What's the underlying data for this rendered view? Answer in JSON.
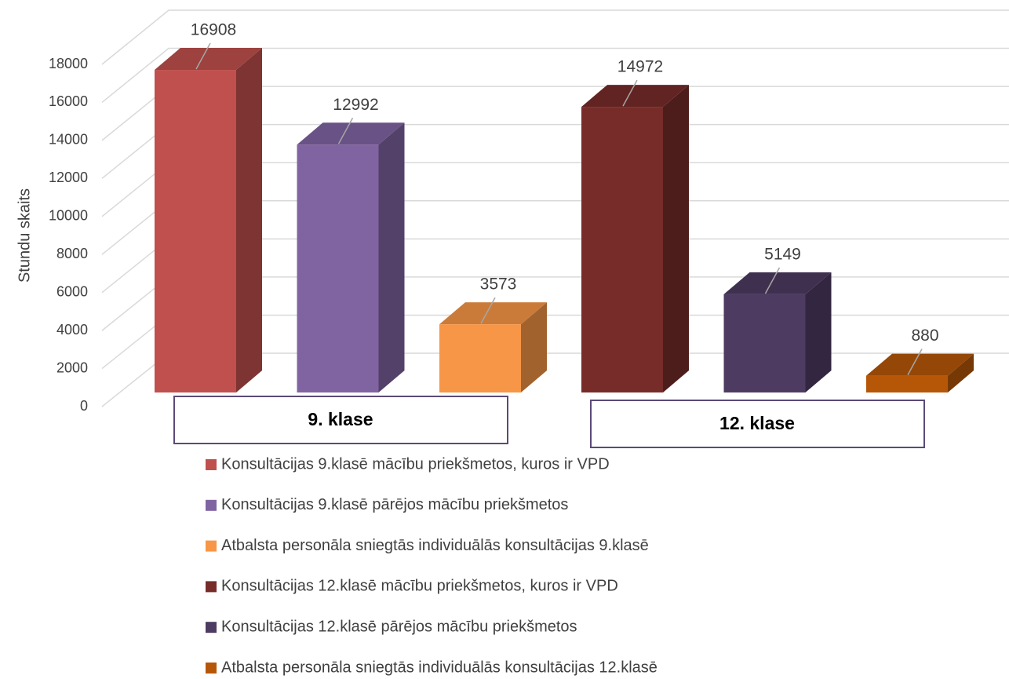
{
  "chart_data": {
    "type": "bar3d",
    "y_label": "Stundu skaits",
    "categories": [
      "9. klase",
      "12. klase"
    ],
    "ylim": [
      0,
      18000
    ],
    "yticks": [
      0,
      2000,
      4000,
      6000,
      8000,
      10000,
      12000,
      14000,
      16000,
      18000
    ],
    "grid": true,
    "series": [
      {
        "name": "Konsultācijas 9.klasē mācību priekšmetos, kuros ir VPD",
        "color": "#c0504d",
        "values": [
          16908,
          null
        ]
      },
      {
        "name": "Konsultācijas 9.klasē  pārējos mācību priekšmetos",
        "color": "#8064a2",
        "values": [
          12992,
          null
        ]
      },
      {
        "name": "Atbalsta personāla sniegtās  individuālās konsultācijas 9.klasē",
        "color": "#f79646",
        "values": [
          3573,
          null
        ]
      },
      {
        "name": "Konsultācijas  12.klasē mācību priekšmetos, kuros ir VPD",
        "color": "#772c2a",
        "values": [
          null,
          14972
        ]
      },
      {
        "name": "Konsultācijas  12.klasē pārējos mācību priekšmetos",
        "color": "#4d3b62",
        "values": [
          null,
          5149
        ]
      },
      {
        "name": "Atbalsta personāla sniegtās individuālās konsultācijas 12.klasē",
        "color": "#b65708",
        "values": [
          null,
          880
        ]
      }
    ]
  }
}
